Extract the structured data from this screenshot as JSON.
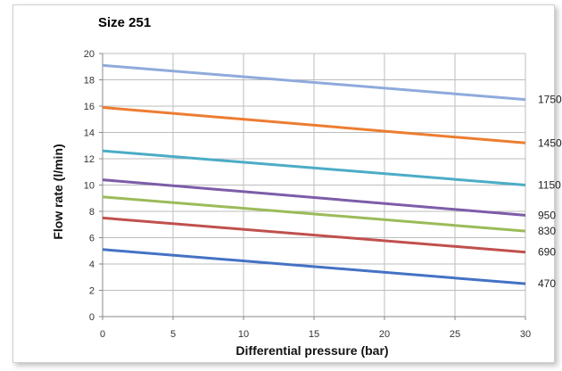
{
  "chart_data": {
    "type": "line",
    "title": "Size 251",
    "xlabel": "Differential pressure (bar)",
    "ylabel": "Flow rate (l/min)",
    "xlim": [
      0,
      30
    ],
    "ylim": [
      0,
      20
    ],
    "xticks": [
      "0",
      "5",
      "10",
      "15",
      "20",
      "25",
      "30"
    ],
    "yticks": [
      "0",
      "2",
      "4",
      "6",
      "8",
      "10",
      "12",
      "14",
      "16",
      "18",
      "20"
    ],
    "grid": true,
    "series": [
      {
        "name": "1750",
        "color": "#8faadc",
        "x": [
          0,
          30
        ],
        "y": [
          19.1,
          16.5
        ]
      },
      {
        "name": "1450",
        "color": "#ed7d31",
        "x": [
          0,
          30
        ],
        "y": [
          15.9,
          13.2
        ]
      },
      {
        "name": "1150",
        "color": "#4bacc6",
        "x": [
          0,
          30
        ],
        "y": [
          12.6,
          10.0
        ]
      },
      {
        "name": "950",
        "color": "#7d5ca8",
        "x": [
          0,
          30
        ],
        "y": [
          10.4,
          7.7
        ]
      },
      {
        "name": "830",
        "color": "#9bbb59",
        "x": [
          0,
          30
        ],
        "y": [
          9.1,
          6.5
        ]
      },
      {
        "name": "690",
        "color": "#c0504d",
        "x": [
          0,
          30
        ],
        "y": [
          7.5,
          4.9
        ]
      },
      {
        "name": "470",
        "color": "#4472c4",
        "x": [
          0,
          30
        ],
        "y": [
          5.1,
          2.5
        ]
      }
    ]
  }
}
